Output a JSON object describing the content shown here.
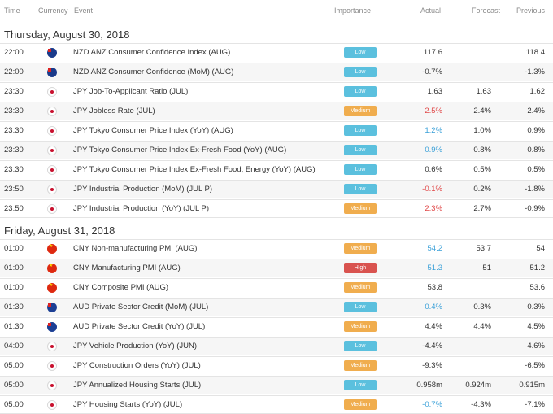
{
  "headers": {
    "time": "Time",
    "currency": "Currency",
    "event": "Event",
    "importance": "Importance",
    "actual": "Actual",
    "forecast": "Forecast",
    "previous": "Previous"
  },
  "colors": {
    "low": "#5bc0de",
    "medium": "#f0ad4e",
    "high": "#d9534f",
    "actual_worse": "#e04848",
    "actual_better": "#3aa0d8"
  },
  "days": [
    {
      "label": "Thursday, August 30, 2018",
      "rows": [
        {
          "time": "22:00",
          "currency": "nzd",
          "event": "NZD ANZ Consumer Confidence Index (AUG)",
          "importance": "Low",
          "actual": "117.6",
          "actual_tone": "",
          "forecast": "",
          "previous": "118.4"
        },
        {
          "time": "22:00",
          "currency": "nzd",
          "event": "NZD ANZ Consumer Confidence (MoM) (AUG)",
          "importance": "Low",
          "actual": "-0.7%",
          "actual_tone": "",
          "forecast": "",
          "previous": "-1.3%"
        },
        {
          "time": "23:30",
          "currency": "jpy",
          "event": "JPY Job-To-Applicant Ratio (JUL)",
          "importance": "Low",
          "actual": "1.63",
          "actual_tone": "",
          "forecast": "1.63",
          "previous": "1.62"
        },
        {
          "time": "23:30",
          "currency": "jpy",
          "event": "JPY Jobless Rate (JUL)",
          "importance": "Medium",
          "actual": "2.5%",
          "actual_tone": "red",
          "forecast": "2.4%",
          "previous": "2.4%"
        },
        {
          "time": "23:30",
          "currency": "jpy",
          "event": "JPY Tokyo Consumer Price Index (YoY) (AUG)",
          "importance": "Low",
          "actual": "1.2%",
          "actual_tone": "blue",
          "forecast": "1.0%",
          "previous": "0.9%"
        },
        {
          "time": "23:30",
          "currency": "jpy",
          "event": "JPY Tokyo Consumer Price Index Ex-Fresh Food (YoY) (AUG)",
          "importance": "Low",
          "actual": "0.9%",
          "actual_tone": "blue",
          "forecast": "0.8%",
          "previous": "0.8%"
        },
        {
          "time": "23:30",
          "currency": "jpy",
          "event": "JPY Tokyo Consumer Price Index Ex-Fresh Food, Energy (YoY) (AUG)",
          "importance": "Low",
          "actual": "0.6%",
          "actual_tone": "",
          "forecast": "0.5%",
          "previous": "0.5%"
        },
        {
          "time": "23:50",
          "currency": "jpy",
          "event": "JPY Industrial Production (MoM) (JUL P)",
          "importance": "Low",
          "actual": "-0.1%",
          "actual_tone": "red",
          "forecast": "0.2%",
          "previous": "-1.8%"
        },
        {
          "time": "23:50",
          "currency": "jpy",
          "event": "JPY Industrial Production (YoY) (JUL P)",
          "importance": "Medium",
          "actual": "2.3%",
          "actual_tone": "red",
          "forecast": "2.7%",
          "previous": "-0.9%"
        }
      ]
    },
    {
      "label": "Friday, August 31, 2018",
      "rows": [
        {
          "time": "01:00",
          "currency": "cny",
          "event": "CNY Non-manufacturing PMI (AUG)",
          "importance": "Medium",
          "actual": "54.2",
          "actual_tone": "blue",
          "forecast": "53.7",
          "previous": "54"
        },
        {
          "time": "01:00",
          "currency": "cny",
          "event": "CNY Manufacturing PMI (AUG)",
          "importance": "High",
          "actual": "51.3",
          "actual_tone": "blue",
          "forecast": "51",
          "previous": "51.2"
        },
        {
          "time": "01:00",
          "currency": "cny",
          "event": "CNY Composite PMI (AUG)",
          "importance": "Medium",
          "actual": "53.8",
          "actual_tone": "",
          "forecast": "",
          "previous": "53.6"
        },
        {
          "time": "01:30",
          "currency": "aud",
          "event": "AUD Private Sector Credit (MoM) (JUL)",
          "importance": "Low",
          "actual": "0.4%",
          "actual_tone": "blue",
          "forecast": "0.3%",
          "previous": "0.3%"
        },
        {
          "time": "01:30",
          "currency": "aud",
          "event": "AUD Private Sector Credit (YoY) (JUL)",
          "importance": "Medium",
          "actual": "4.4%",
          "actual_tone": "",
          "forecast": "4.4%",
          "previous": "4.5%"
        },
        {
          "time": "04:00",
          "currency": "jpy",
          "event": "JPY Vehicle Production (YoY) (JUN)",
          "importance": "Low",
          "actual": "-4.4%",
          "actual_tone": "",
          "forecast": "",
          "previous": "4.6%"
        },
        {
          "time": "05:00",
          "currency": "jpy",
          "event": "JPY Construction Orders (YoY) (JUL)",
          "importance": "Medium",
          "actual": "-9.3%",
          "actual_tone": "",
          "forecast": "",
          "previous": "-6.5%"
        },
        {
          "time": "05:00",
          "currency": "jpy",
          "event": "JPY Annualized Housing Starts (JUL)",
          "importance": "Low",
          "actual": "0.958m",
          "actual_tone": "",
          "forecast": "0.924m",
          "previous": "0.915m"
        },
        {
          "time": "05:00",
          "currency": "jpy",
          "event": "JPY Housing Starts (YoY) (JUL)",
          "importance": "Medium",
          "actual": "-0.7%",
          "actual_tone": "blue",
          "forecast": "-4.3%",
          "previous": "-7.1%"
        }
      ]
    }
  ]
}
